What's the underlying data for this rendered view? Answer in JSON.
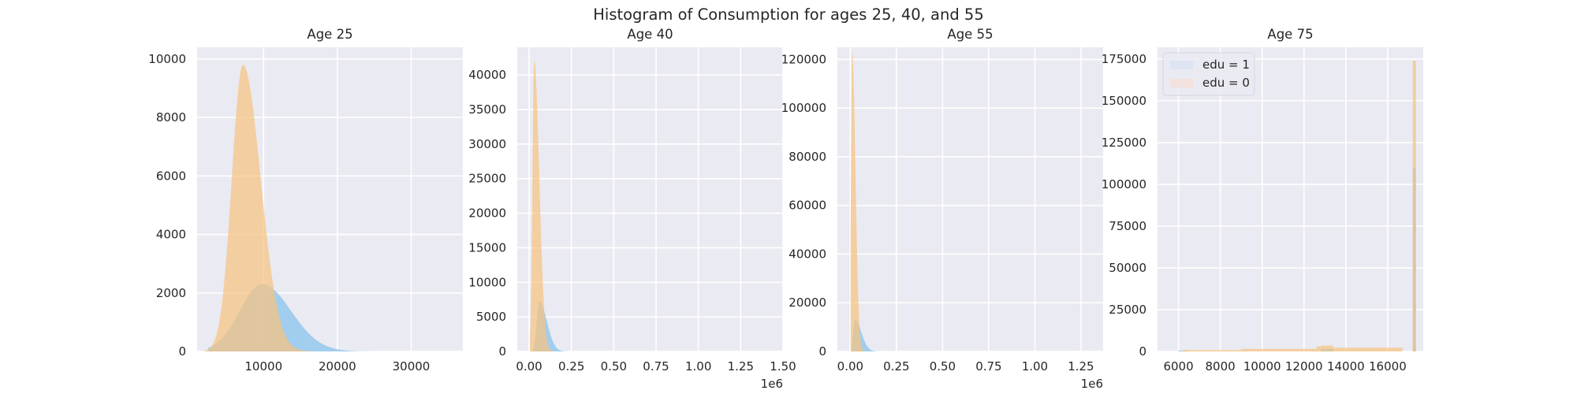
{
  "chart_data": {
    "title": "Histogram of Consumption for ages 25, 40, and 55",
    "colors": {
      "background": "#eaeaf2",
      "grid": "#ffffff",
      "edu1": "#8ec6ec",
      "edu0": "#f7c37f",
      "legend_edu1": "#dde4f2",
      "legend_edu0": "#f2e1dd"
    },
    "legend": {
      "entries": [
        "edu = 1",
        "edu = 0"
      ],
      "location": "upper-left",
      "panel": 3
    },
    "panels": [
      {
        "type": "histogram",
        "title": "Age 25",
        "xlim": [
          1000,
          37000
        ],
        "ylim": [
          0,
          10400
        ],
        "xticks": [
          10000,
          20000,
          30000
        ],
        "xtick_labels": [
          "10000",
          "20000",
          "30000"
        ],
        "yticks": [
          0,
          2000,
          4000,
          6000,
          8000,
          10000
        ],
        "ytick_labels": [
          "0",
          "2000",
          "4000",
          "6000",
          "8000",
          "10000"
        ],
        "x_offset_label": "",
        "series": [
          {
            "name": "edu = 1",
            "peak_x": 9800,
            "peak_y": 2300,
            "sigma_left": 3000,
            "sigma_right": 3900,
            "xmin": 2500,
            "xmax": 36000
          },
          {
            "name": "edu = 0",
            "peak_x": 7200,
            "peak_y": 9800,
            "sigma_left": 1500,
            "sigma_right": 2400,
            "xmin": 2000,
            "xmax": 22000
          }
        ]
      },
      {
        "type": "histogram",
        "title": "Age 40",
        "xlim": [
          -70000,
          1500000
        ],
        "ylim": [
          0,
          44000
        ],
        "xticks": [
          0,
          250000,
          500000,
          750000,
          1000000,
          1250000,
          1500000
        ],
        "xtick_labels": [
          "0.00",
          "0.25",
          "0.50",
          "0.75",
          "1.00",
          "1.25",
          "1.50"
        ],
        "yticks": [
          0,
          5000,
          10000,
          15000,
          20000,
          25000,
          30000,
          35000,
          40000
        ],
        "ytick_labels": [
          "0",
          "5000",
          "10000",
          "15000",
          "20000",
          "25000",
          "30000",
          "35000",
          "40000"
        ],
        "x_offset_label": "1e6",
        "series": [
          {
            "name": "edu = 1",
            "peak_x": 60000,
            "peak_y": 7200,
            "sigma_left": 15000,
            "sigma_right": 45000,
            "xmin": 20000,
            "xmax": 400000
          },
          {
            "name": "edu = 0",
            "peak_x": 30000,
            "peak_y": 42000,
            "sigma_left": 10000,
            "sigma_right": 30000,
            "xmin": 5000,
            "xmax": 250000
          }
        ]
      },
      {
        "type": "histogram",
        "title": "Age 55",
        "xlim": [
          -70000,
          1370000
        ],
        "ylim": [
          0,
          125000
        ],
        "xticks": [
          0,
          250000,
          500000,
          750000,
          1000000,
          1250000
        ],
        "xtick_labels": [
          "0.00",
          "0.25",
          "0.50",
          "0.75",
          "1.00",
          "1.25"
        ],
        "yticks": [
          0,
          20000,
          40000,
          60000,
          80000,
          100000,
          120000
        ],
        "ytick_labels": [
          "0",
          "20000",
          "40000",
          "60000",
          "80000",
          "100000",
          "120000"
        ],
        "x_offset_label": "1e6",
        "series": [
          {
            "name": "edu = 1",
            "peak_x": 25000,
            "peak_y": 13000,
            "sigma_left": 10000,
            "sigma_right": 35000,
            "xmin": 5000,
            "xmax": 300000
          },
          {
            "name": "edu = 0",
            "peak_x": 10000,
            "peak_y": 123000,
            "sigma_left": 6000,
            "sigma_right": 18000,
            "xmin": 2000,
            "xmax": 180000
          }
        ]
      },
      {
        "type": "histogram",
        "title": "Age 75",
        "xlim": [
          5000,
          17700
        ],
        "ylim": [
          0,
          182000
        ],
        "xticks": [
          6000,
          8000,
          10000,
          12000,
          14000,
          16000
        ],
        "xtick_labels": [
          "6000",
          "8000",
          "10000",
          "12000",
          "14000",
          "16000"
        ],
        "yticks": [
          0,
          25000,
          50000,
          75000,
          100000,
          125000,
          150000,
          175000
        ],
        "ytick_labels": [
          "0",
          "25000",
          "50000",
          "75000",
          "100000",
          "125000",
          "150000",
          "175000"
        ],
        "x_offset_label": "",
        "series": [
          {
            "name": "edu = 1",
            "segments": [
              [
                6000,
                6500,
                500
              ],
              [
                12800,
                13400,
                1500
              ],
              [
                17200,
                17350,
                110000
              ]
            ]
          },
          {
            "name": "edu = 0",
            "segments": [
              [
                6200,
                9000,
                900
              ],
              [
                9000,
                12600,
                1500
              ],
              [
                12600,
                12800,
                3000
              ],
              [
                12800,
                13400,
                3500
              ],
              [
                13400,
                16700,
                2200
              ],
              [
                17200,
                17350,
                174000
              ]
            ]
          }
        ]
      }
    ]
  }
}
